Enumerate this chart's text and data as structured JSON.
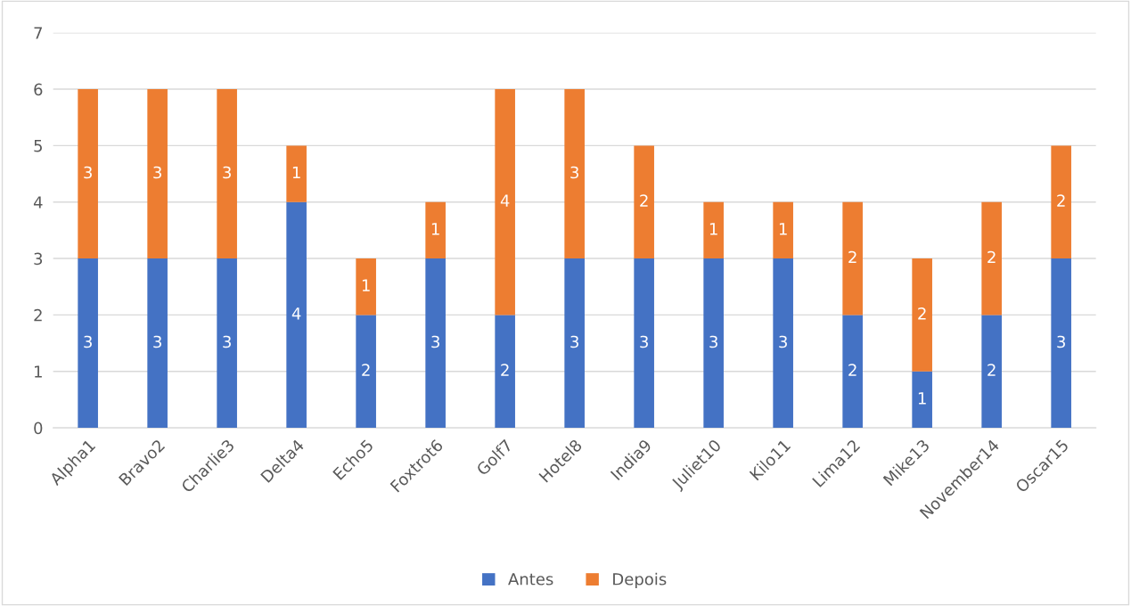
{
  "chart_data": {
    "type": "bar",
    "stacked": true,
    "categories": [
      "Alpha1",
      "Bravo2",
      "Charlie3",
      "Delta4",
      "Echo5",
      "Foxtrot6",
      "Golf7",
      "Hotel8",
      "India9",
      "Juliet10",
      "Kilo11",
      "Lima12",
      "Mike13",
      "November14",
      "Oscar15"
    ],
    "series": [
      {
        "name": "Antes",
        "color": "#4472c4",
        "values": [
          3,
          3,
          3,
          4,
          2,
          3,
          2,
          3,
          3,
          3,
          3,
          2,
          1,
          2,
          3
        ]
      },
      {
        "name": "Depois",
        "color": "#ed7d31",
        "values": [
          3,
          3,
          3,
          1,
          1,
          1,
          4,
          3,
          2,
          1,
          1,
          2,
          2,
          2,
          2
        ]
      }
    ],
    "ylim": [
      0,
      7
    ],
    "yticks": [
      0,
      1,
      2,
      3,
      4,
      5,
      6,
      7
    ],
    "grid": "y",
    "legend": "bottom",
    "data_labels": true
  }
}
